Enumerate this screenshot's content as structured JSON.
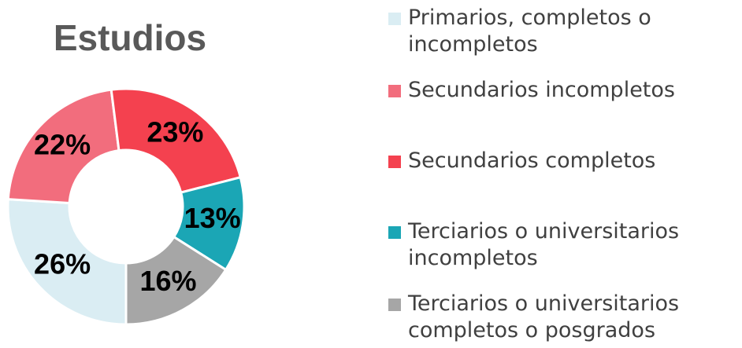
{
  "chart_data": {
    "type": "donut",
    "title": "Estudios",
    "categories": [
      "Primarios, completos o incompletos",
      "Secundarios incompletos",
      "Secundarios completos",
      "Terciarios o universitarios incompletos",
      "Terciarios o universitarios completos o posgrados"
    ],
    "values": [
      26,
      22,
      23,
      13,
      16
    ],
    "value_labels": [
      "26%",
      "22%",
      "23%",
      "13%",
      "16%"
    ],
    "colors": [
      "#daedf3",
      "#f26d7d",
      "#f4414f",
      "#1ba6b5",
      "#a6a6a6"
    ]
  }
}
